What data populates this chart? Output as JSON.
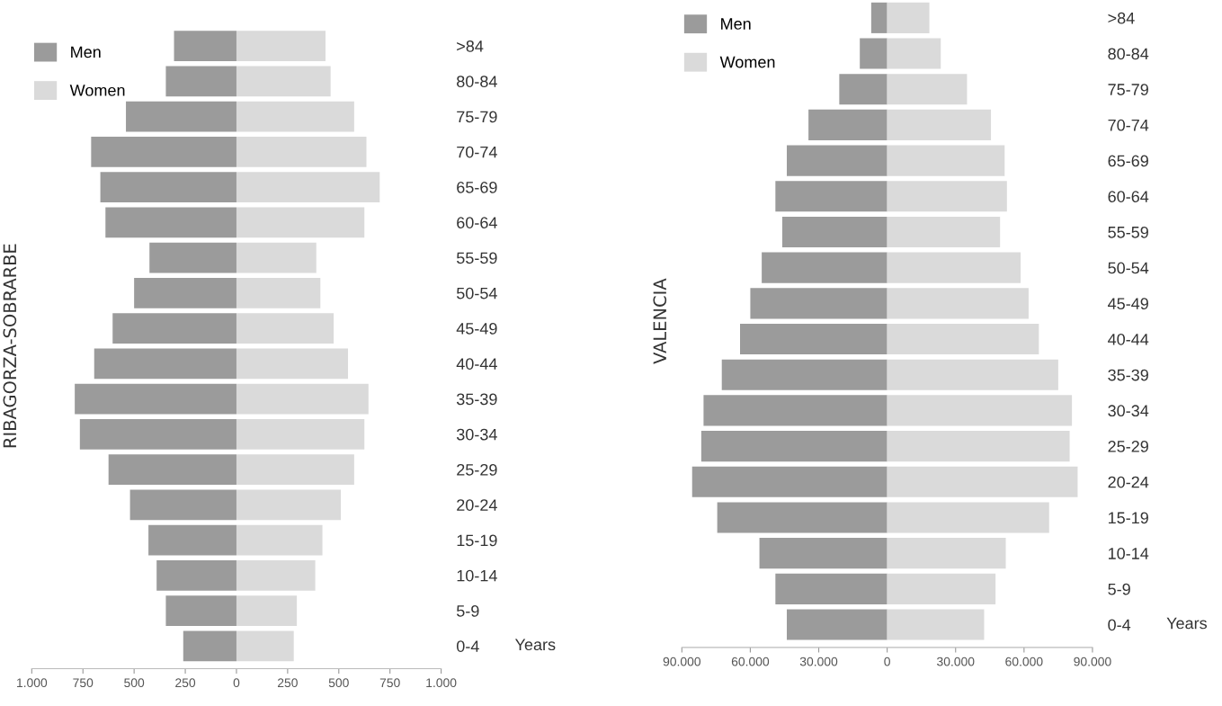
{
  "chart_data": [
    {
      "type": "bar",
      "orientation": "horizontal",
      "stacked": true,
      "ylabel": "RIBAGORZA-SOBRARBE",
      "categories": [
        ">84",
        "80-84",
        "75-79",
        "70-74",
        "65-69",
        "60-64",
        "55-59",
        "50-54",
        "45-49",
        "40-44",
        "35-39",
        "30-34",
        "25-29",
        "20-24",
        "15-19",
        "10-14",
        "5-9",
        "0-4"
      ],
      "series": [
        {
          "name": "Men",
          "color": "#9b9b9b",
          "values": [
            -305,
            -345,
            -540,
            -710,
            -665,
            -640,
            -425,
            -500,
            -605,
            -695,
            -790,
            -765,
            -625,
            -520,
            -430,
            -390,
            -345,
            -260
          ]
        },
        {
          "name": "Women",
          "color": "#dadada",
          "values": [
            435,
            460,
            575,
            635,
            700,
            625,
            390,
            410,
            475,
            545,
            645,
            625,
            575,
            510,
            420,
            385,
            295,
            280
          ]
        }
      ],
      "xlim": [
        -1000,
        1000
      ],
      "xticks": [
        {
          "value": -1000,
          "label": "1.000"
        },
        {
          "value": -750,
          "label": "750"
        },
        {
          "value": -500,
          "label": "500"
        },
        {
          "value": -250,
          "label": "250"
        },
        0,
        250,
        500,
        750,
        {
          "value": 1000,
          "label": "1.000"
        }
      ],
      "legend": "top left",
      "grid": false,
      "annotations": [
        "Years"
      ]
    },
    {
      "type": "bar",
      "orientation": "horizontal",
      "stacked": true,
      "ylabel": "VALENCIA",
      "categories": [
        ">84",
        "80-84",
        "75-79",
        "70-74",
        "65-69",
        "60-64",
        "55-59",
        "50-54",
        "45-49",
        "40-44",
        "35-39",
        "30-34",
        "25-29",
        "20-24",
        "15-19",
        "10-14",
        "5-9",
        "0-4"
      ],
      "series": [
        {
          "name": "Men",
          "color": "#9b9b9b",
          "values": [
            -7000,
            -12000,
            -21000,
            -34500,
            -44000,
            -49000,
            -46000,
            -55000,
            -60000,
            -64500,
            -72500,
            -80500,
            -81500,
            -85500,
            -74500,
            -56000,
            -49000,
            -44000
          ]
        },
        {
          "name": "Women",
          "color": "#dadada",
          "values": [
            18500,
            23500,
            35000,
            45500,
            51500,
            52500,
            49500,
            58500,
            62000,
            66500,
            75000,
            81000,
            80000,
            83500,
            71000,
            52000,
            47500,
            42500
          ]
        }
      ],
      "xlim": [
        -90000,
        90000
      ],
      "xticks": [
        {
          "value": -90000,
          "label": "90.000"
        },
        {
          "value": -60000,
          "label": "60.000"
        },
        {
          "value": -30000,
          "label": "30.000"
        },
        0,
        {
          "value": 30000,
          "label": "30.000"
        },
        {
          "value": 60000,
          "label": "60.000"
        },
        {
          "value": 90000,
          "label": "90.000"
        }
      ],
      "legend": "top left",
      "grid": false,
      "annotations": [
        "Years"
      ]
    }
  ]
}
